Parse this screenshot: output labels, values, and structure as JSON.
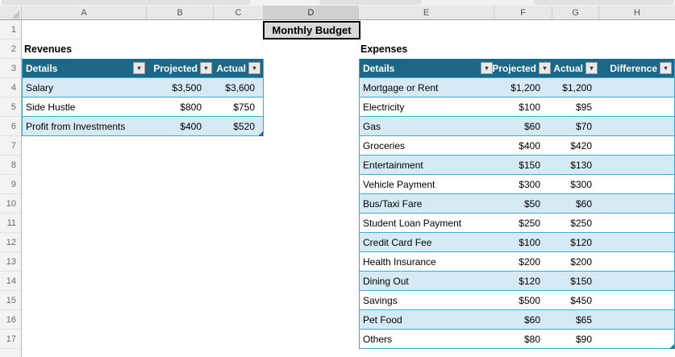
{
  "sheet": {
    "column_headers": [
      "A",
      "B",
      "C",
      "D",
      "E",
      "F",
      "G",
      "H"
    ],
    "selected_column": "D",
    "row_numbers": [
      "1",
      "2",
      "3",
      "4",
      "5",
      "6",
      "7",
      "8",
      "9",
      "10",
      "11",
      "12",
      "13",
      "14",
      "15",
      "16",
      "17"
    ],
    "title_box": {
      "text": "Monthly Budget"
    },
    "revenues": {
      "label": "Revenues",
      "columns": [
        "Details",
        "Projected",
        "Actual"
      ],
      "rows": [
        [
          "Salary",
          "$3,500",
          "$3,600"
        ],
        [
          "Side Hustle",
          "$800",
          "$750"
        ],
        [
          "Profit from Investments",
          "$400",
          "$520"
        ]
      ]
    },
    "expenses": {
      "label": "Expenses",
      "columns": [
        "Details",
        "Projected",
        "Actual",
        "Difference"
      ],
      "rows": [
        [
          "Mortgage or Rent",
          "$1,200",
          "$1,200",
          ""
        ],
        [
          "Electricity",
          "$100",
          "$95",
          ""
        ],
        [
          "Gas",
          "$60",
          "$70",
          ""
        ],
        [
          "Groceries",
          "$400",
          "$420",
          ""
        ],
        [
          "Entertainment",
          "$150",
          "$130",
          ""
        ],
        [
          "Vehicle Payment",
          "$300",
          "$300",
          ""
        ],
        [
          "Bus/Taxi Fare",
          "$50",
          "$60",
          ""
        ],
        [
          "Student Loan Payment",
          "$250",
          "$250",
          ""
        ],
        [
          "Credit Card Fee",
          "$100",
          "$120",
          ""
        ],
        [
          "Health Insurance",
          "$200",
          "$200",
          ""
        ],
        [
          "Dining Out",
          "$120",
          "$150",
          ""
        ],
        [
          "Savings",
          "$500",
          "$450",
          ""
        ],
        [
          "Pet Food",
          "$60",
          "$65",
          ""
        ],
        [
          "Others",
          "$80",
          "$90",
          ""
        ]
      ]
    }
  },
  "icons": {
    "filter_arrow": "▾"
  },
  "colors": {
    "table_header_bg": "#1E6787",
    "banded_row": "#D6EAF6",
    "table_border": "#41A5D6",
    "title_fill": "#D9D9D9"
  }
}
